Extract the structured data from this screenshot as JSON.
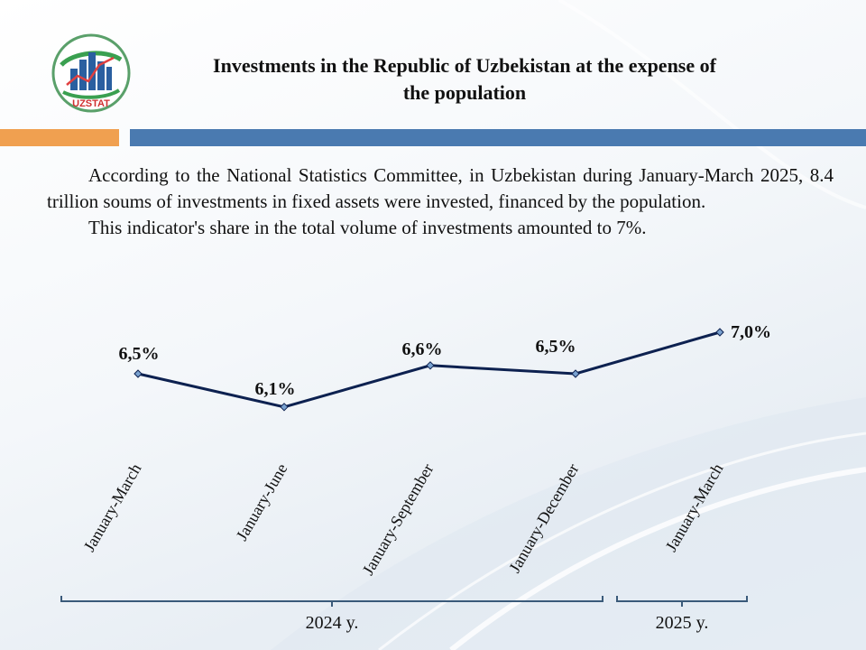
{
  "header": {
    "logo_text": "UZSTAT",
    "title_line1": "Investments in the Republic of Uzbekistan at the expense of",
    "title_line2": "the population"
  },
  "body": {
    "paragraph1": "According to the National Statistics Committee, in Uzbekistan during January-March 2025, 8.4 trillion soums of investments in fixed assets were invested, financed by the population.",
    "paragraph2": "This indicator's share in the total volume of investments amounted to 7%."
  },
  "colors": {
    "line": "#0d2150",
    "marker": "#7aa2d0",
    "orange_bar": "#f0a050",
    "blue_bar": "#4a7ab0",
    "bracket": "#3a5a7a"
  },
  "chart_data": {
    "type": "line",
    "categories": [
      "January-March",
      "January-June",
      "January-September",
      "January-December",
      "January-March"
    ],
    "values": [
      6.5,
      6.1,
      6.6,
      6.5,
      7.0
    ],
    "data_labels": [
      "6,5%",
      "6,1%",
      "6,6%",
      "6,5%",
      "7,0%"
    ],
    "groups": [
      {
        "label": "2024 y.",
        "categories": [
          0,
          1,
          2,
          3
        ]
      },
      {
        "label": "2025 y.",
        "categories": [
          4
        ]
      }
    ],
    "title": "",
    "xlabel": "",
    "ylabel": "",
    "grid": false,
    "legend": "none"
  }
}
